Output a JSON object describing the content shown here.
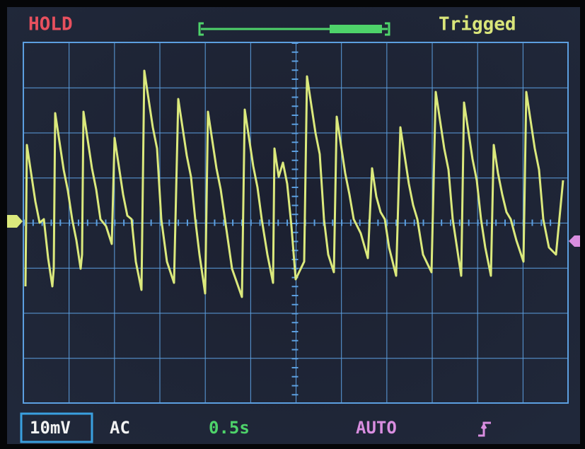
{
  "header": {
    "mode": "HOLD",
    "trigger_status": "Trigged"
  },
  "footer": {
    "volts_per_div": "10mV",
    "coupling": "AC",
    "timebase": "0.5s",
    "trigger_mode": "AUTO"
  }
}
